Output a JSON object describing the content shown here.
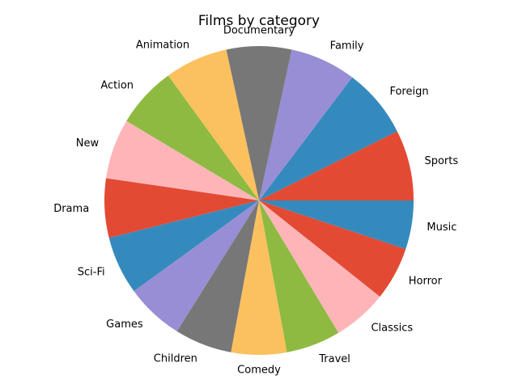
{
  "chart_data": {
    "type": "pie",
    "title": "Films by category",
    "start_angle": 0,
    "direction": "counterclockwise",
    "palette": [
      "#e24a33",
      "#348abd",
      "#988ed5",
      "#777777",
      "#fbc15e",
      "#8eba42",
      "#ffb5b8"
    ],
    "slices": [
      {
        "label": "Sports",
        "value": 74
      },
      {
        "label": "Foreign",
        "value": 73
      },
      {
        "label": "Family",
        "value": 69
      },
      {
        "label": "Documentary",
        "value": 68
      },
      {
        "label": "Animation",
        "value": 66
      },
      {
        "label": "Action",
        "value": 64
      },
      {
        "label": "New",
        "value": 63
      },
      {
        "label": "Drama",
        "value": 62
      },
      {
        "label": "Sci-Fi",
        "value": 61
      },
      {
        "label": "Games",
        "value": 61
      },
      {
        "label": "Children",
        "value": 60
      },
      {
        "label": "Comedy",
        "value": 58
      },
      {
        "label": "Travel",
        "value": 57
      },
      {
        "label": "Classics",
        "value": 57
      },
      {
        "label": "Horror",
        "value": 56
      },
      {
        "label": "Music",
        "value": 51
      }
    ]
  }
}
